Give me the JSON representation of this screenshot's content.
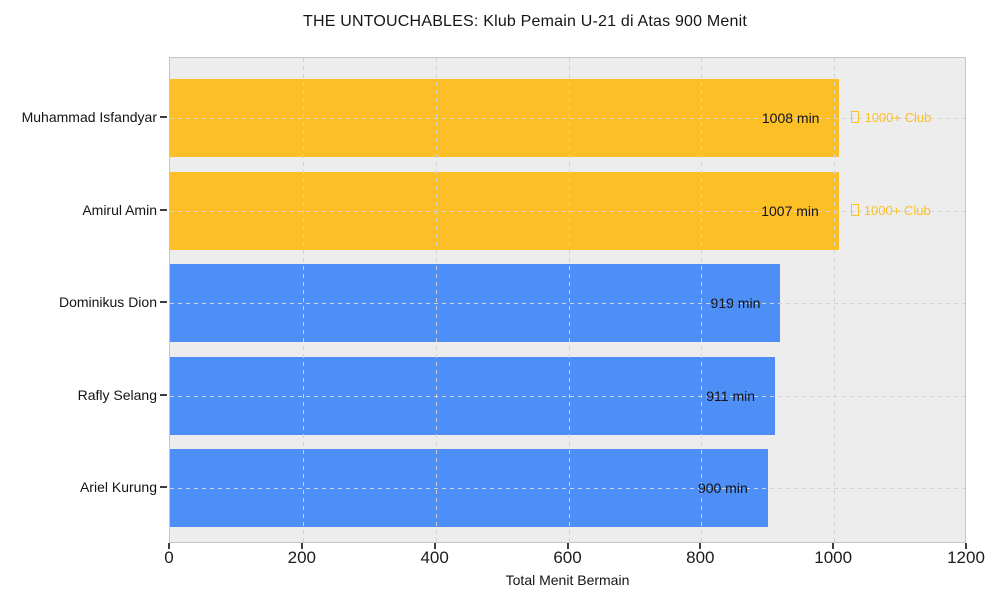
{
  "chart_data": {
    "type": "bar",
    "orientation": "horizontal",
    "title": "THE UNTOUCHABLES: Klub Pemain U-21 di Atas 900 Menit",
    "xlabel": "Total Menit Bermain",
    "ylabel": "",
    "xlim": [
      0,
      1200
    ],
    "xticks": [
      0,
      200,
      400,
      600,
      800,
      1000,
      1200
    ],
    "grid": "dashed, both axes, drawn over bars",
    "legend_position": "none",
    "categories": [
      "Muhammad Isfandyar",
      "Amirul Amin",
      "Dominikus Dion",
      "Rafly Selang",
      "Ariel Kurung"
    ],
    "values": [
      1008,
      1007,
      919,
      911,
      900
    ],
    "bars": [
      {
        "category": "Muhammad Isfandyar",
        "value": 1008,
        "value_label": "1008 min",
        "group": "highlight",
        "annotation": "1000+ Club",
        "annotation_icon": "missing-glyph-box"
      },
      {
        "category": "Amirul Amin",
        "value": 1007,
        "value_label": "1007 min",
        "group": "highlight",
        "annotation": "1000+ Club",
        "annotation_icon": "missing-glyph-box"
      },
      {
        "category": "Dominikus Dion",
        "value": 919,
        "value_label": "919 min",
        "group": "default",
        "annotation": null
      },
      {
        "category": "Rafly Selang",
        "value": 911,
        "value_label": "911 min",
        "group": "default",
        "annotation": null
      },
      {
        "category": "Ariel Kurung",
        "value": 900,
        "value_label": "900 min",
        "group": "default",
        "annotation": null
      }
    ],
    "colors": {
      "highlight_bar": "#FCBF26",
      "default_bar": "#4D8EF7",
      "annotation_text": "#FCBF26",
      "plot_background": "#EDEDED",
      "gridline": "#D2D2D2",
      "text": "#141414"
    }
  }
}
